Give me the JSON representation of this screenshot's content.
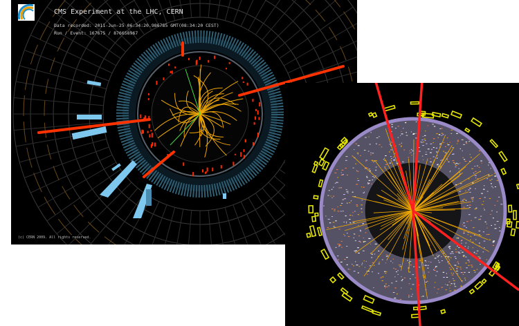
{
  "cms_display": {
    "title": "CMS Experiment at the LHC, CERN",
    "data_recorded": "Data recorded: 2011-Jun-25 06:34:20.986785 GMT(08:34:20 CEST)",
    "run_event": "Run / Event: 167675 / 876658967",
    "copyright": "(c) CERN 2009. All rights reserved."
  },
  "colors": {
    "background": "#000000",
    "tracks": "#f0a800",
    "muon_tracks": "#ff3300",
    "calorimeter": "#7ec8f0",
    "atlas_ring": "#9a8ac8",
    "atlas_hits": "#e8e800"
  }
}
